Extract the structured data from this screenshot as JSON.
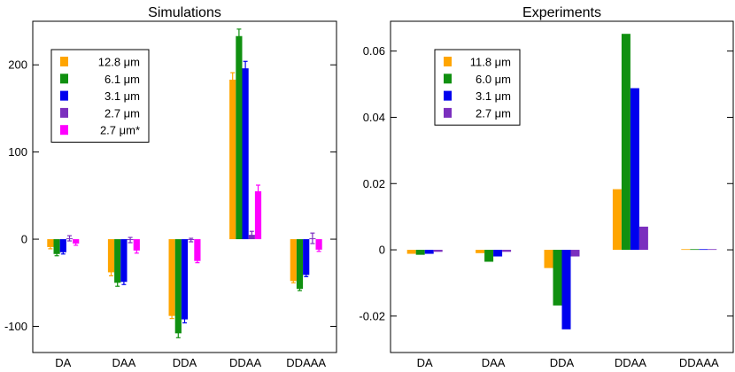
{
  "chart_data": [
    {
      "type": "bar",
      "title": "Simulations",
      "xlabel": "",
      "ylabel": "",
      "categories": [
        "DA",
        "DAA",
        "DDA",
        "DDAA",
        "DDAAA"
      ],
      "ylim": [
        -130,
        250
      ],
      "yticks": [
        "-100",
        "0",
        "100",
        "200"
      ],
      "ytick_values": [
        -100,
        0,
        100,
        200
      ],
      "grid": false,
      "legend_position": "top-left",
      "series": [
        {
          "name": "12.8 μm",
          "color": "#FFA500",
          "values": [
            -9,
            -38,
            -88,
            183,
            -48
          ],
          "errors": [
            2,
            4,
            3,
            8,
            2
          ]
        },
        {
          "name": "6.1 μm",
          "color": "#109010",
          "values": [
            -17,
            -50,
            -108,
            233,
            -57
          ],
          "errors": [
            2,
            4,
            5,
            8,
            2
          ]
        },
        {
          "name": "3.1 μm",
          "color": "#0000EE",
          "values": [
            -15,
            -49,
            -92,
            196,
            -41
          ],
          "errors": [
            2,
            3,
            4,
            8,
            2
          ]
        },
        {
          "name": "2.7 μm",
          "color": "#7B2FBE",
          "values": [
            1,
            -1,
            -1,
            5,
            1
          ],
          "errors": [
            3,
            3,
            2,
            4,
            6
          ]
        },
        {
          "name": "2.7 μm*",
          "color": "#FF00FF",
          "values": [
            -5,
            -13,
            -25,
            55,
            -12
          ],
          "errors": [
            2,
            3,
            2,
            7,
            2
          ]
        }
      ]
    },
    {
      "type": "bar",
      "title": "Experiments",
      "xlabel": "",
      "ylabel": "",
      "categories": [
        "DA",
        "DAA",
        "DDA",
        "DDAA",
        "DDAAA"
      ],
      "ylim": [
        -0.031,
        0.069
      ],
      "yticks": [
        "-0.02",
        "0",
        "0.02",
        "0.04",
        "0.06"
      ],
      "ytick_values": [
        -0.02,
        0,
        0.02,
        0.04,
        0.06
      ],
      "grid": false,
      "legend_position": "top-left",
      "series": [
        {
          "name": "11.8 μm",
          "color": "#FFA500",
          "values": [
            -0.0012,
            -0.001,
            -0.0055,
            0.0183,
            0.0002
          ]
        },
        {
          "name": "6.0 μm",
          "color": "#109010",
          "values": [
            -0.0015,
            -0.0036,
            -0.0168,
            0.0652,
            0.0002
          ]
        },
        {
          "name": "3.1 μm",
          "color": "#0000EE",
          "values": [
            -0.0012,
            -0.002,
            -0.024,
            0.0488,
            0.0002
          ]
        },
        {
          "name": "2.7 μm",
          "color": "#7B2FBE",
          "values": [
            -0.0006,
            -0.0006,
            -0.002,
            0.007,
            0.0002
          ]
        }
      ]
    }
  ]
}
